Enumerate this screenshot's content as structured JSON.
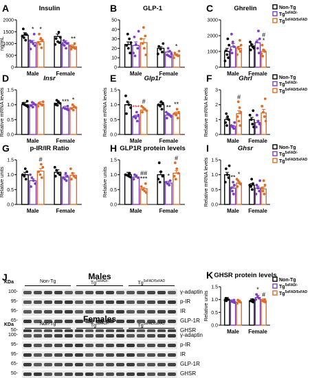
{
  "chart_data": [
    {
      "id": "A",
      "type": "bar",
      "title": "Insulin",
      "title_style": "normal",
      "ylabel": "ng/mL",
      "ylim": [
        0,
        2000
      ],
      "yticks": [
        0,
        500,
        1000,
        1500,
        2000
      ],
      "categories": [
        "Male",
        "Female"
      ],
      "series": [
        {
          "name": "Non-Tg",
          "values": [
            1350,
            1300
          ]
        },
        {
          "name": "Tg5xFAD/-",
          "values": [
            1040,
            1040
          ]
        },
        {
          "name": "Tg5xFAD/5xFAD",
          "values": [
            1080,
            870
          ]
        }
      ],
      "annotations": [
        {
          "category": "Male",
          "series": 1,
          "text": "*"
        },
        {
          "category": "Male",
          "series": 2,
          "text": "*"
        },
        {
          "category": "Female",
          "series": 2,
          "text": "**"
        }
      ],
      "points": [
        [
          [
            1620,
            1390,
            1380,
            1310,
            1250,
            1140
          ],
          [
            1480,
            1260,
            1210,
            1080,
            1040,
            960
          ]
        ],
        [
          [
            1400,
            1120,
            1080,
            990,
            910,
            770
          ],
          [
            1130,
            1050,
            1000,
            960,
            920,
            800
          ]
        ],
        [
          [
            1400,
            1220,
            1140,
            1050,
            970,
            820
          ],
          [
            1000,
            900,
            850,
            830,
            790,
            760
          ]
        ]
      ]
    },
    {
      "id": "B",
      "type": "bar",
      "title": "GLP-1",
      "title_style": "normal",
      "ylabel": "",
      "ylim": [
        0,
        50
      ],
      "yticks": [
        0,
        10,
        20,
        30,
        40,
        50
      ],
      "categories": [
        "Male",
        "Female"
      ],
      "series": [
        {
          "name": "Non-Tg",
          "values": [
            24,
            20
          ]
        },
        {
          "name": "Tg5xFAD/-",
          "values": [
            23,
            16
          ]
        },
        {
          "name": "Tg5xFAD/5xFAD",
          "values": [
            26,
            13
          ]
        }
      ],
      "annotations": [
        {
          "category": "Female",
          "series": 2,
          "text": "*"
        }
      ],
      "points": [
        [
          [
            35,
            30,
            26,
            23,
            20,
            15
          ],
          [
            25,
            22,
            19,
            16,
            14
          ]
        ],
        [
          [
            38,
            32,
            24,
            20,
            15,
            12
          ],
          [
            20,
            17,
            14,
            13,
            12,
            11
          ]
        ],
        [
          [
            42,
            33,
            30,
            25,
            20,
            13
          ],
          [
            17,
            15,
            13,
            12,
            10
          ]
        ]
      ]
    },
    {
      "id": "C",
      "type": "bar",
      "title": "Ghrelin",
      "title_style": "normal",
      "ylabel": "",
      "ylim": [
        0,
        3000
      ],
      "yticks": [
        0,
        1000,
        2000,
        3000
      ],
      "categories": [
        "Male",
        "Female"
      ],
      "series": [
        {
          "name": "Non-Tg",
          "values": [
            1000,
            1350
          ]
        },
        {
          "name": "Tg5xFAD/-",
          "values": [
            1300,
            1550
          ]
        },
        {
          "name": "Tg5xFAD/5xFAD",
          "values": [
            1200,
            1000
          ]
        }
      ],
      "annotations": [
        {
          "category": "Female",
          "series": 2,
          "text": "*"
        },
        {
          "category": "Female",
          "series": 2,
          "text": "#"
        }
      ],
      "points": [
        [
          [
            1800,
            1400,
            1050,
            800,
            600,
            400
          ],
          [
            1600,
            1450,
            1300,
            1200,
            1100
          ]
        ],
        [
          [
            2100,
            1600,
            1300,
            1100,
            900
          ],
          [
            2300,
            1800,
            1600,
            1200,
            900
          ]
        ],
        [
          [
            1700,
            1400,
            1250,
            1150,
            1000,
            800
          ],
          [
            1400,
            1100,
            1000,
            850,
            700
          ]
        ]
      ]
    },
    {
      "id": "D",
      "type": "bar",
      "title": "Insr",
      "title_style": "italic",
      "ylabel": "Relative mRNA levels",
      "ylim": [
        0,
        1.5
      ],
      "yticks": [
        0.0,
        0.5,
        1.0,
        1.5
      ],
      "categories": [
        "Male",
        "Female"
      ],
      "series": [
        {
          "name": "Non-Tg",
          "values": [
            1.0,
            1.05
          ]
        },
        {
          "name": "Tg5xFAD/-",
          "values": [
            1.0,
            0.88
          ]
        },
        {
          "name": "Tg5xFAD/5xFAD",
          "values": [
            1.02,
            0.9
          ]
        }
      ],
      "annotations": [
        {
          "category": "Female",
          "series": 1,
          "text": "***"
        },
        {
          "category": "Female",
          "series": 2,
          "text": "*"
        }
      ],
      "points": [
        [
          [
            1.12,
            1.05,
            1.0,
            0.97,
            0.93
          ],
          [
            1.15,
            1.1,
            1.05,
            1.0,
            0.98
          ]
        ],
        [
          [
            1.08,
            1.03,
            1.0,
            0.97,
            0.92
          ],
          [
            0.95,
            0.9,
            0.87,
            0.85,
            0.82
          ]
        ],
        [
          [
            1.1,
            1.05,
            1.02,
            0.98,
            0.95
          ],
          [
            1.0,
            0.93,
            0.9,
            0.87,
            0.82
          ]
        ]
      ]
    },
    {
      "id": "E",
      "type": "bar",
      "title": "Glp1r",
      "title_style": "italic",
      "ylabel": "Relative mRNA levels",
      "ylim": [
        0,
        1.5
      ],
      "yticks": [
        0.0,
        0.5,
        1.0,
        1.5
      ],
      "categories": [
        "Male",
        "Female"
      ],
      "series": [
        {
          "name": "Non-Tg",
          "values": [
            1.0,
            1.0
          ]
        },
        {
          "name": "Tg5xFAD/-",
          "values": [
            0.6,
            0.65
          ]
        },
        {
          "name": "Tg5xFAD/5xFAD",
          "values": [
            0.82,
            0.7
          ]
        }
      ],
      "annotations": [
        {
          "category": "Male",
          "series": 1,
          "text": "***"
        },
        {
          "category": "Male",
          "series": 2,
          "text": "#"
        },
        {
          "category": "Female",
          "series": 1,
          "text": "**"
        },
        {
          "category": "Female",
          "series": 2,
          "text": "**"
        }
      ],
      "points": [
        [
          [
            1.3,
            1.1,
            1.0,
            0.9,
            0.7
          ],
          [
            1.1,
            1.05,
            1.0,
            0.95,
            0.85
          ]
        ],
        [
          [
            0.75,
            0.65,
            0.6,
            0.55,
            0.45
          ],
          [
            0.75,
            0.7,
            0.65,
            0.6,
            0.55
          ]
        ],
        [
          [
            0.95,
            0.9,
            0.85,
            0.8,
            0.75
          ],
          [
            0.85,
            0.75,
            0.7,
            0.65,
            0.55
          ]
        ]
      ]
    },
    {
      "id": "F",
      "type": "bar",
      "title": "Ghrl",
      "title_style": "italic",
      "ylabel": "Relative mRNA levels",
      "ylim": [
        0,
        3
      ],
      "yticks": [
        0,
        1,
        2,
        3
      ],
      "categories": [
        "Male",
        "Female"
      ],
      "series": [
        {
          "name": "Non-Tg",
          "values": [
            1.0,
            1.0
          ]
        },
        {
          "name": "Tg5xFAD/-",
          "values": [
            0.55,
            0.8
          ]
        },
        {
          "name": "Tg5xFAD/5xFAD",
          "values": [
            1.4,
            1.45
          ]
        }
      ],
      "annotations": [
        {
          "category": "Male",
          "series": 2,
          "text": "#"
        }
      ],
      "points": [
        [
          [
            1.4,
            1.2,
            1.0,
            0.8,
            0.6
          ],
          [
            1.6,
            1.3,
            1.0,
            0.7,
            0.5
          ]
        ],
        [
          [
            0.8,
            0.6,
            0.5,
            0.4
          ],
          [
            1.3,
            0.9,
            0.7,
            0.5
          ]
        ],
        [
          [
            2.2,
            1.8,
            1.5,
            1.2,
            0.9,
            0.6
          ],
          [
            2.4,
            1.9,
            1.5,
            1.2,
            0.9
          ]
        ]
      ]
    },
    {
      "id": "G",
      "type": "bar",
      "title": "p-IR/IR Ratio",
      "title_style": "normal",
      "ylabel": "Relative units",
      "ylim": [
        0,
        1.5
      ],
      "yticks": [
        0.0,
        0.5,
        1.0,
        1.5
      ],
      "categories": [
        "Male",
        "Female"
      ],
      "series": [
        {
          "name": "Non-Tg",
          "values": [
            1.0,
            1.08
          ]
        },
        {
          "name": "Tg5xFAD/-",
          "values": [
            0.8,
            0.92
          ]
        },
        {
          "name": "Tg5xFAD/5xFAD",
          "values": [
            1.12,
            0.98
          ]
        }
      ],
      "annotations": [
        {
          "category": "Male",
          "series": 2,
          "text": "#"
        }
      ],
      "points": [
        [
          [
            1.2,
            1.1,
            1.0,
            0.95,
            0.85
          ],
          [
            1.25,
            1.15,
            1.05,
            1.0,
            0.95
          ]
        ],
        [
          [
            1.0,
            0.9,
            0.8,
            0.7,
            0.6
          ],
          [
            1.05,
            0.95,
            0.9,
            0.85,
            0.8
          ]
        ],
        [
          [
            1.35,
            1.25,
            1.1,
            1.0,
            0.9
          ],
          [
            1.2,
            1.05,
            0.95,
            0.9,
            0.85
          ]
        ]
      ]
    },
    {
      "id": "H",
      "type": "bar",
      "title": "GLP1R protein levels",
      "title_style": "normal",
      "ylabel": "Relative units",
      "ylim": [
        0,
        1.5
      ],
      "yticks": [
        0.0,
        0.5,
        1.0,
        1.5
      ],
      "categories": [
        "Male",
        "Female"
      ],
      "series": [
        {
          "name": "Non-Tg",
          "values": [
            1.0,
            1.0
          ]
        },
        {
          "name": "Tg5xFAD/-",
          "values": [
            0.92,
            0.72
          ]
        },
        {
          "name": "Tg5xFAD/5xFAD",
          "values": [
            0.53,
            1.05
          ]
        }
      ],
      "annotations": [
        {
          "category": "Male",
          "series": 2,
          "text": "***"
        },
        {
          "category": "Male",
          "series": 2,
          "text": "##"
        },
        {
          "category": "Female",
          "series": 1,
          "text": "*"
        },
        {
          "category": "Female",
          "series": 2,
          "text": "#"
        }
      ],
      "points": [
        [
          [
            1.05,
            1.0,
            0.98,
            0.95,
            0.92
          ],
          [
            1.4,
            1.1,
            0.95,
            0.85,
            0.75
          ]
        ],
        [
          [
            1.0,
            0.95,
            0.9,
            0.85
          ],
          [
            0.8,
            0.75,
            0.7,
            0.65
          ]
        ],
        [
          [
            0.7,
            0.6,
            0.5,
            0.45,
            0.4
          ],
          [
            1.4,
            1.2,
            1.05,
            0.95,
            0.85
          ]
        ]
      ]
    },
    {
      "id": "I",
      "type": "bar",
      "title": "Ghsr",
      "title_style": "italic",
      "ylabel": "Relative mRNA levels",
      "ylim": [
        0,
        1.5
      ],
      "yticks": [
        0.0,
        0.5,
        1.0,
        1.5
      ],
      "categories": [
        "Male",
        "Female"
      ],
      "series": [
        {
          "name": "Non-Tg",
          "values": [
            1.0,
            0.65
          ]
        },
        {
          "name": "Tg5xFAD/-",
          "values": [
            0.55,
            0.55
          ]
        },
        {
          "name": "Tg5xFAD/5xFAD",
          "values": [
            0.72,
            0.52
          ]
        }
      ],
      "annotations": [
        {
          "category": "Male",
          "series": 1,
          "text": "**"
        },
        {
          "category": "Male",
          "series": 2,
          "text": "*"
        }
      ],
      "points": [
        [
          [
            1.3,
            1.2,
            1.0,
            0.9,
            0.75
          ],
          [
            0.85,
            0.7,
            0.65,
            0.6,
            0.5
          ]
        ],
        [
          [
            0.75,
            0.65,
            0.55,
            0.45,
            0.35
          ],
          [
            0.8,
            0.65,
            0.55,
            0.45,
            0.35
          ]
        ],
        [
          [
            0.85,
            0.8,
            0.72,
            0.68,
            0.6
          ],
          [
            0.8,
            0.65,
            0.55,
            0.45,
            0.35
          ]
        ]
      ]
    },
    {
      "id": "K",
      "type": "bar",
      "title": "GHSR protein levels",
      "title_style": "normal",
      "ylabel": "Relative units",
      "ylim": [
        0,
        1.5
      ],
      "yticks": [
        0.0,
        0.5,
        1.0,
        1.5
      ],
      "categories": [
        "Male",
        "Female"
      ],
      "series": [
        {
          "name": "Non-Tg",
          "values": [
            1.0,
            0.95
          ]
        },
        {
          "name": "Tg5xFAD/-",
          "values": [
            0.92,
            1.08
          ]
        },
        {
          "name": "Tg5xFAD/5xFAD",
          "values": [
            0.9,
            0.95
          ]
        }
      ],
      "annotations": [
        {
          "category": "Female",
          "series": 1,
          "text": "*"
        },
        {
          "category": "Female",
          "series": 2,
          "text": "#"
        }
      ],
      "points": [
        [
          [
            1.05,
            1.02,
            1.0,
            0.98,
            0.95
          ],
          [
            1.0,
            0.98,
            0.95,
            0.93,
            0.9
          ]
        ],
        [
          [
            0.98,
            0.95,
            0.92,
            0.9,
            0.88
          ],
          [
            1.2,
            1.1,
            1.05,
            1.0
          ]
        ],
        [
          [
            0.98,
            0.95,
            0.9,
            0.85
          ],
          [
            1.0,
            0.97,
            0.95,
            0.92,
            0.9
          ]
        ]
      ]
    }
  ],
  "legend": {
    "entries": [
      {
        "label": "Non-Tg",
        "color": "#000000"
      },
      {
        "label": "Tg",
        "sup": "5xFAD/-",
        "color": "#7b3fc4"
      },
      {
        "label": "Tg",
        "sup": "5xFAD/5xFAD",
        "color": "#e06b25"
      }
    ]
  },
  "colors": {
    "nontg": "#000000",
    "het": "#7b3fc4",
    "hom": "#e06b25",
    "sig": "#e02020"
  },
  "blot": {
    "panel_id": "J",
    "kda_label": "KDa",
    "group_labels": [
      {
        "base": "Non-Tg",
        "sup": ""
      },
      {
        "base": "Tg",
        "sup": "5xFAD/-"
      },
      {
        "base": "Tg",
        "sup": "5xFAD/5xFAD"
      }
    ],
    "sections": [
      {
        "title": "Males",
        "mw": [
          "100-",
          "95-",
          "95-",
          "65-",
          "50-"
        ],
        "bands": [
          "γ-adaptin",
          "p-IR",
          "IR",
          "GLP-1R",
          "GHSR"
        ]
      },
      {
        "title": "Females",
        "mw": [
          "100-",
          "95-",
          "95-",
          "65-",
          "50-"
        ],
        "bands": [
          "γ-adaptin",
          "p-IR",
          "IR",
          "GLP-1R",
          "GHSR"
        ]
      }
    ]
  }
}
